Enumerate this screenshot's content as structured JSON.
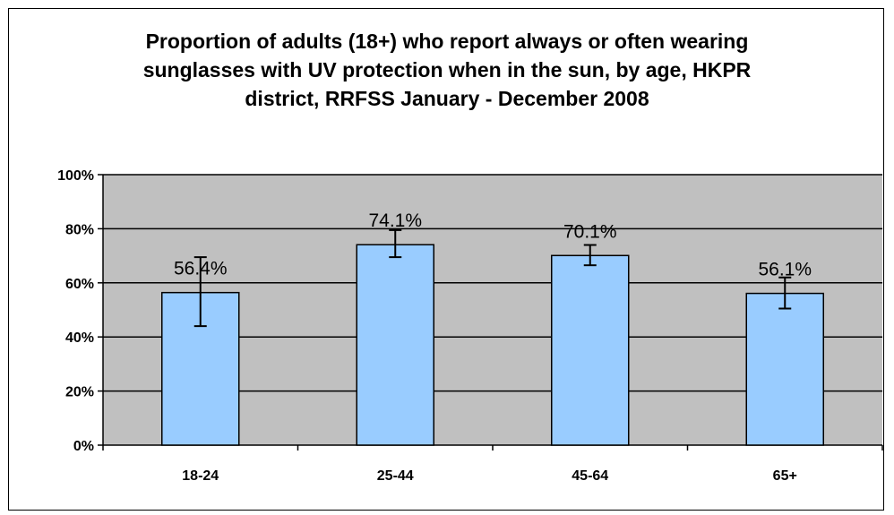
{
  "chart_data": {
    "type": "bar",
    "title": "Proportion of adults (18+) who report always or often wearing\nsunglasses with UV protection when in the sun, by age, HKPR\ndistrict, RRFSS January - December 2008",
    "categories": [
      "18-24",
      "25-44",
      "45-64",
      "65+"
    ],
    "values": [
      56.4,
      74.1,
      70.1,
      56.1
    ],
    "data_labels": [
      "56.4%",
      "74.1%",
      "70.1%",
      "56.1%"
    ],
    "error_low": [
      44,
      69.5,
      66.5,
      50.5
    ],
    "error_high": [
      69.5,
      79.5,
      74,
      62
    ],
    "ylim": [
      0,
      100
    ],
    "yticks": [
      0,
      20,
      40,
      60,
      80,
      100
    ],
    "ytick_labels": [
      "0%",
      "20%",
      "40%",
      "60%",
      "80%",
      "100%"
    ],
    "xlabel": "",
    "ylabel": "",
    "grid": true,
    "legend": "none",
    "colors": {
      "bar": "#99CCFF",
      "plot_area": "#C0C0C0",
      "border": "#000000"
    }
  }
}
